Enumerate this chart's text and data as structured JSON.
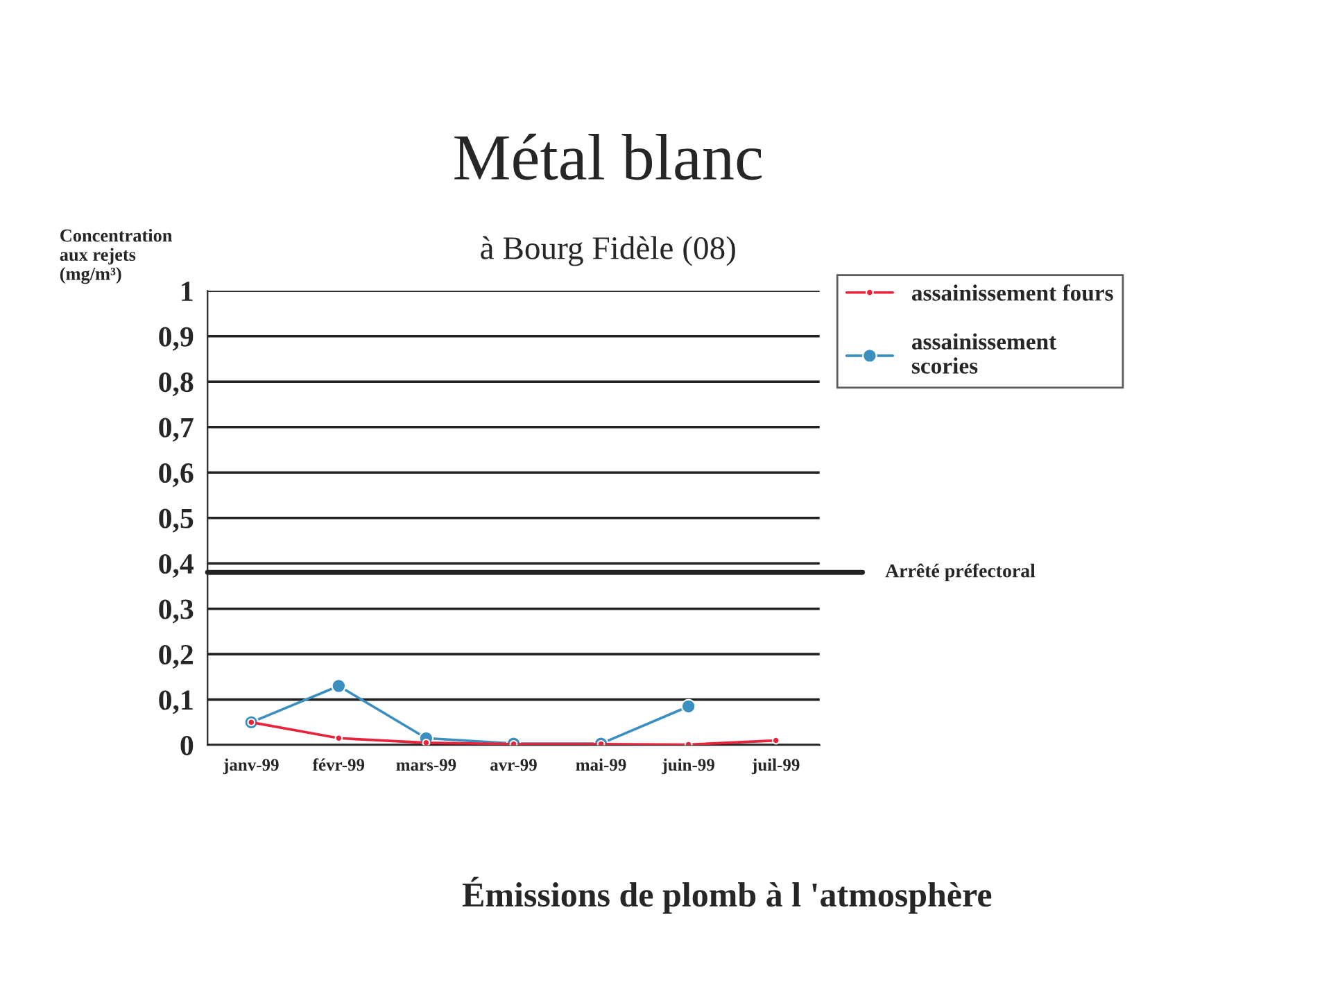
{
  "chart_data": {
    "type": "line",
    "title": "Métal blanc",
    "subtitle": "à Bourg Fidèle (08)",
    "ylabel": "Concentration\naux rejets\n(mg/m³)",
    "categories": [
      "janv-99",
      "févr-99",
      "mars-99",
      "avr-99",
      "mai-99",
      "juin-99",
      "juil-99"
    ],
    "series": [
      {
        "name": "assainissement fours",
        "color": "#e8243c",
        "values": [
          0.05,
          0.015,
          0.005,
          0.002,
          0.002,
          0.001,
          0.01
        ]
      },
      {
        "name": "assainissement\nscories",
        "color": "#3a8fc0",
        "values": [
          0.05,
          0.13,
          0.015,
          0.003,
          0.003,
          0.085,
          null
        ]
      }
    ],
    "ylim": [
      0,
      1
    ],
    "yticks": [
      0,
      {
        "value": 0.1,
        "label": "0,1"
      },
      {
        "value": 0.2,
        "label": "0,2"
      },
      {
        "value": 0.3,
        "label": "0,3"
      },
      {
        "value": 0.4,
        "label": "0,4"
      },
      {
        "value": 0.5,
        "label": "0,5"
      },
      {
        "value": 0.6,
        "label": "0,6"
      },
      {
        "value": 0.7,
        "label": "0,7"
      },
      {
        "value": 0.8,
        "label": "0,8"
      },
      {
        "value": 0.9,
        "label": "0,9"
      },
      1
    ],
    "ref_lines": [
      {
        "axis": "y",
        "value": 0.38,
        "label": "Arrêté préfectoral",
        "color": "#222222"
      }
    ],
    "grid": "y",
    "legend": "right",
    "marker": "circle",
    "annotations": [
      "Émissions de plomb à l 'atmosphère"
    ]
  }
}
